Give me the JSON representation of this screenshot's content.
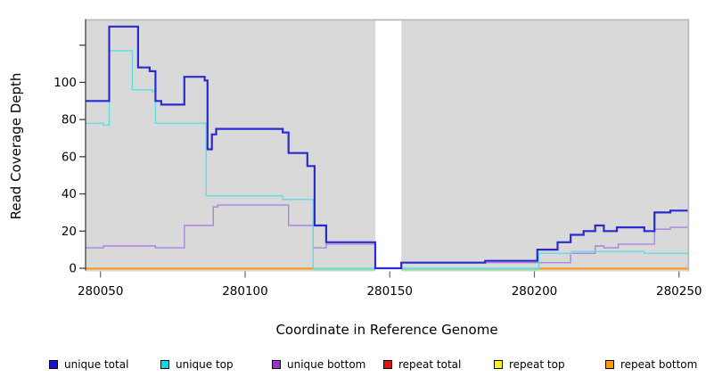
{
  "chart_data": {
    "type": "line",
    "style": "step",
    "title": "",
    "xlabel": "Coordinate in Reference Genome",
    "ylabel": "Read Coverage Depth",
    "xlim": [
      280045,
      280253
    ],
    "ylim": [
      0,
      134
    ],
    "x_ticks": [
      280050,
      280100,
      280150,
      280200,
      280250
    ],
    "y_ticks": [
      {
        "value": 0,
        "label": "0"
      },
      {
        "value": 20,
        "label": "20"
      },
      {
        "value": 40,
        "label": "40"
      },
      {
        "value": 60,
        "label": "60"
      },
      {
        "value": 80,
        "label": "80"
      },
      {
        "value": 100,
        "label": "100"
      },
      {
        "value": 120,
        "label": ""
      }
    ],
    "plot_background": "#d9d9d9",
    "plot_border_color": "#bcbcbc",
    "axis_color": "#333333",
    "tick_color": "#666666",
    "grid": false,
    "legend_position": "bottom",
    "no_data_gap": {
      "x_start": 280145,
      "x_end": 280154,
      "color": "#ffffff"
    },
    "series": [
      {
        "name": "unique total",
        "line_color": "#2a2ad4",
        "line_width": 2.2,
        "points": [
          [
            280045,
            90
          ],
          [
            280053,
            130
          ],
          [
            280063,
            108
          ],
          [
            280067,
            106
          ],
          [
            280069,
            90
          ],
          [
            280071,
            88
          ],
          [
            280079,
            103
          ],
          [
            280086,
            101
          ],
          [
            280087,
            64
          ],
          [
            280088.5,
            72
          ],
          [
            280090,
            75
          ],
          [
            280113,
            73
          ],
          [
            280115,
            62
          ],
          [
            280121.5,
            55
          ],
          [
            280124,
            23
          ],
          [
            280128,
            14
          ],
          [
            280145,
            0
          ],
          [
            280154,
            3
          ],
          [
            280183,
            4
          ],
          [
            280201,
            10
          ],
          [
            280208,
            14
          ],
          [
            280212.5,
            18
          ],
          [
            280217,
            20
          ],
          [
            280221,
            23
          ],
          [
            280224,
            20
          ],
          [
            280228.5,
            22
          ],
          [
            280238,
            20
          ],
          [
            280241.5,
            30
          ],
          [
            280247,
            31
          ]
        ]
      },
      {
        "name": "unique top",
        "line_color": "#5edde2",
        "line_width": 1.4,
        "points": [
          [
            280045,
            78
          ],
          [
            280051,
            77
          ],
          [
            280053,
            117
          ],
          [
            280061,
            96
          ],
          [
            280068,
            95
          ],
          [
            280069,
            78
          ],
          [
            280086.5,
            39
          ],
          [
            280113,
            37
          ],
          [
            280123.5,
            0
          ],
          [
            280201.5,
            8
          ],
          [
            280213,
            9
          ],
          [
            280238,
            8
          ]
        ]
      },
      {
        "name": "unique bottom",
        "line_color": "#ab84dd",
        "line_width": 1.4,
        "points": [
          [
            280045,
            11
          ],
          [
            280051,
            12
          ],
          [
            280069,
            11
          ],
          [
            280079,
            23
          ],
          [
            280089,
            33
          ],
          [
            280090.5,
            34
          ],
          [
            280115,
            23
          ],
          [
            280123.5,
            11
          ],
          [
            280128,
            13
          ],
          [
            280145,
            0
          ],
          [
            280154,
            3
          ],
          [
            280212.5,
            8
          ],
          [
            280221,
            12
          ],
          [
            280224,
            11
          ],
          [
            280229,
            13
          ],
          [
            280241.5,
            21
          ],
          [
            280247,
            22
          ]
        ]
      },
      {
        "name": "repeat total",
        "line_color": "#e11212",
        "line_width": 1.4,
        "points": [
          [
            280045,
            0
          ]
        ]
      },
      {
        "name": "repeat top",
        "line_color": "#f2f21a",
        "line_width": 1.4,
        "points": [
          [
            280045,
            0
          ]
        ]
      },
      {
        "name": "repeat bottom",
        "line_color": "#ff9a1c",
        "line_width": 2.2,
        "points": [
          [
            280045,
            0
          ]
        ]
      }
    ],
    "baseline_overlays": [
      {
        "series": "repeat bottom",
        "color": "#ff9a1c",
        "from": 280045,
        "to": 280123.5,
        "width": 2.2,
        "dy": 0.4
      },
      {
        "series": "unique top over repeat top",
        "color": "#8fd98c",
        "from": 280123.5,
        "to": 280145,
        "width": 1.5,
        "dy": 1.5
      },
      {
        "series": "unique top over repeat top",
        "color": "#8fd98c",
        "from": 280154,
        "to": 280201.5,
        "width": 1.5,
        "dy": 1.5
      },
      {
        "series": "repeat bottom",
        "color": "#ff9a1c",
        "from": 280201.5,
        "to": 280253,
        "width": 2.2,
        "dy": 0.4
      }
    ],
    "legend": [
      {
        "label": "unique total",
        "color": "#1414d2"
      },
      {
        "label": "unique top",
        "color": "#06dde2"
      },
      {
        "label": "unique bottom",
        "color": "#9933cc"
      },
      {
        "label": "repeat total",
        "color": "#e11212"
      },
      {
        "label": "repeat top",
        "color": "#f6f616"
      },
      {
        "label": "repeat bottom",
        "color": "#ff9a00"
      }
    ]
  }
}
